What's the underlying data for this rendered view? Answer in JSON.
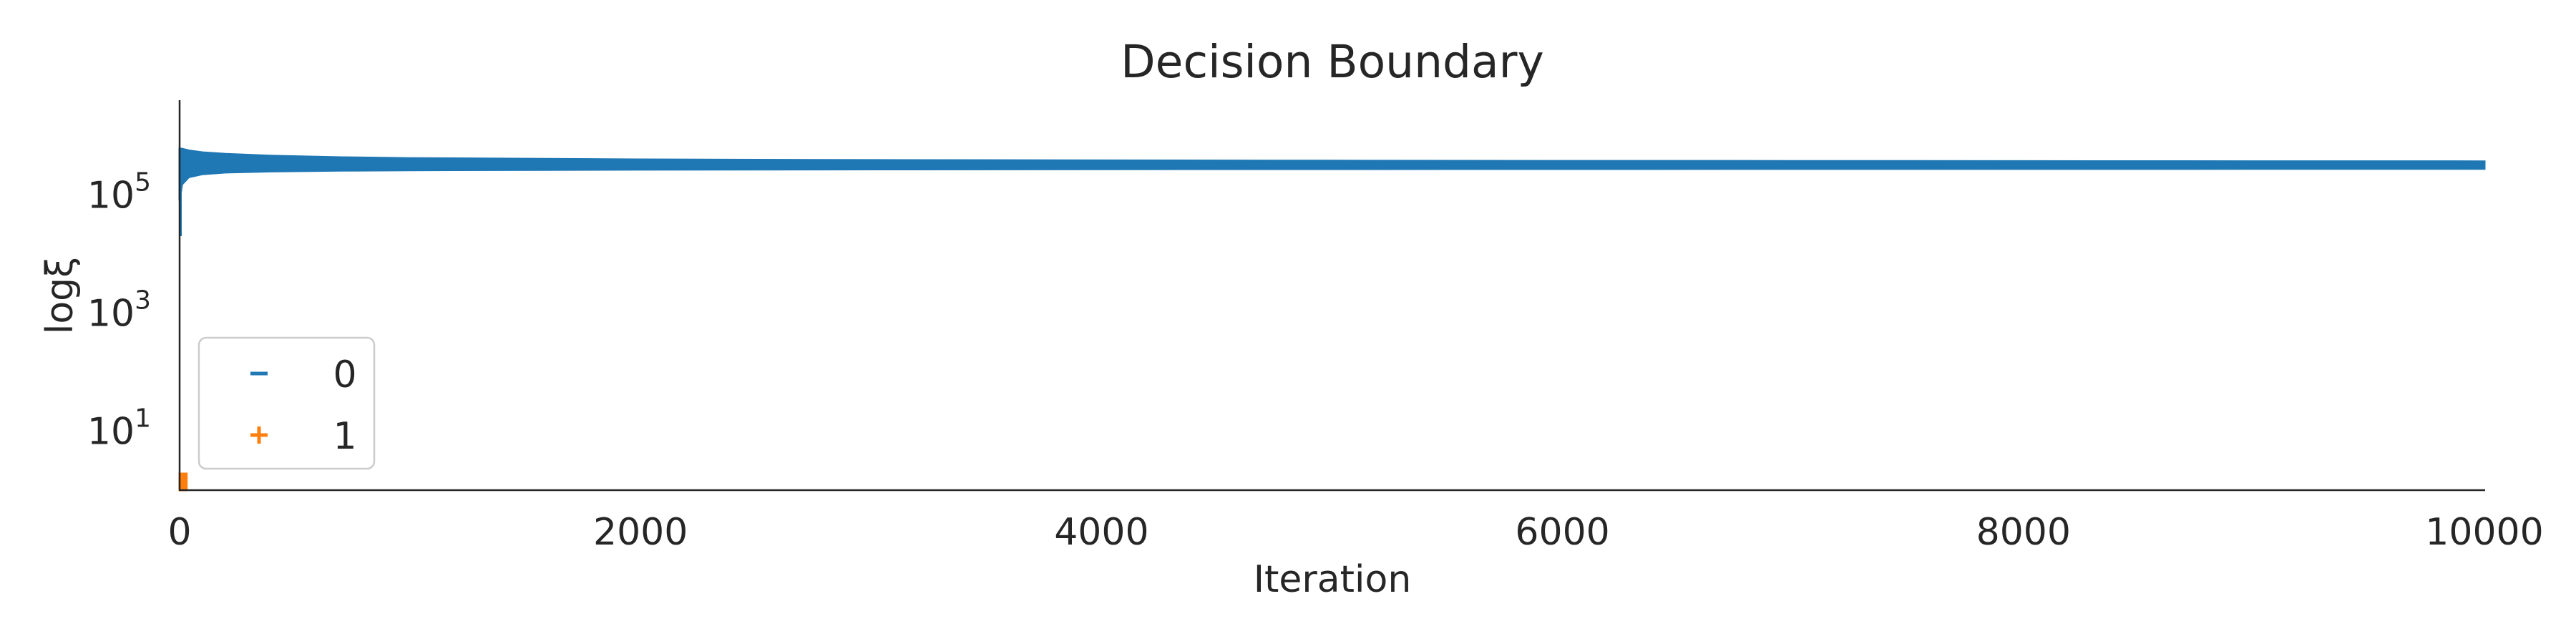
{
  "chart_data": {
    "type": "scatter",
    "title": "Decision Boundary",
    "xlabel": "Iteration",
    "ylabel": "logξ",
    "xlim": [
      0,
      10000
    ],
    "ylim": [
      1,
      4000000
    ],
    "yscale": "log",
    "grid": false,
    "legend_placement": "lower-left",
    "x_ticks": [
      0,
      2000,
      4000,
      6000,
      8000,
      10000
    ],
    "x_tick_labels": [
      "0",
      "2000",
      "4000",
      "6000",
      "8000",
      "10000"
    ],
    "y_ticks": [
      10,
      1000,
      100000
    ],
    "y_tick_labels": [
      {
        "base": "10",
        "exp": "1"
      },
      {
        "base": "10",
        "exp": "3"
      },
      {
        "base": "10",
        "exp": "5"
      }
    ],
    "series": [
      {
        "name": "0",
        "marker": "_",
        "color": "#1f77b4",
        "band": {
          "x": [
            0,
            10,
            40,
            100,
            200,
            400,
            700,
            1000,
            2000,
            3000,
            4000,
            5000,
            6000,
            7000,
            8000,
            9000,
            10000
          ],
          "lower": [
            80000,
            150000,
            200000,
            225000,
            240000,
            250000,
            258000,
            262000,
            268000,
            271000,
            273000,
            274000,
            275000,
            275500,
            276000,
            276500,
            277000
          ],
          "upper": [
            600000,
            600000,
            560000,
            520000,
            490000,
            455000,
            430000,
            415000,
            395000,
            385000,
            380000,
            376000,
            373000,
            371000,
            369000,
            367000,
            366000
          ]
        }
      },
      {
        "name": "1",
        "marker": "+",
        "color": "#ff7f0e",
        "band": {
          "x": [
            0,
            30
          ],
          "lower": [
            1,
            1
          ],
          "upper": [
            1.9,
            1.9
          ]
        }
      }
    ]
  }
}
